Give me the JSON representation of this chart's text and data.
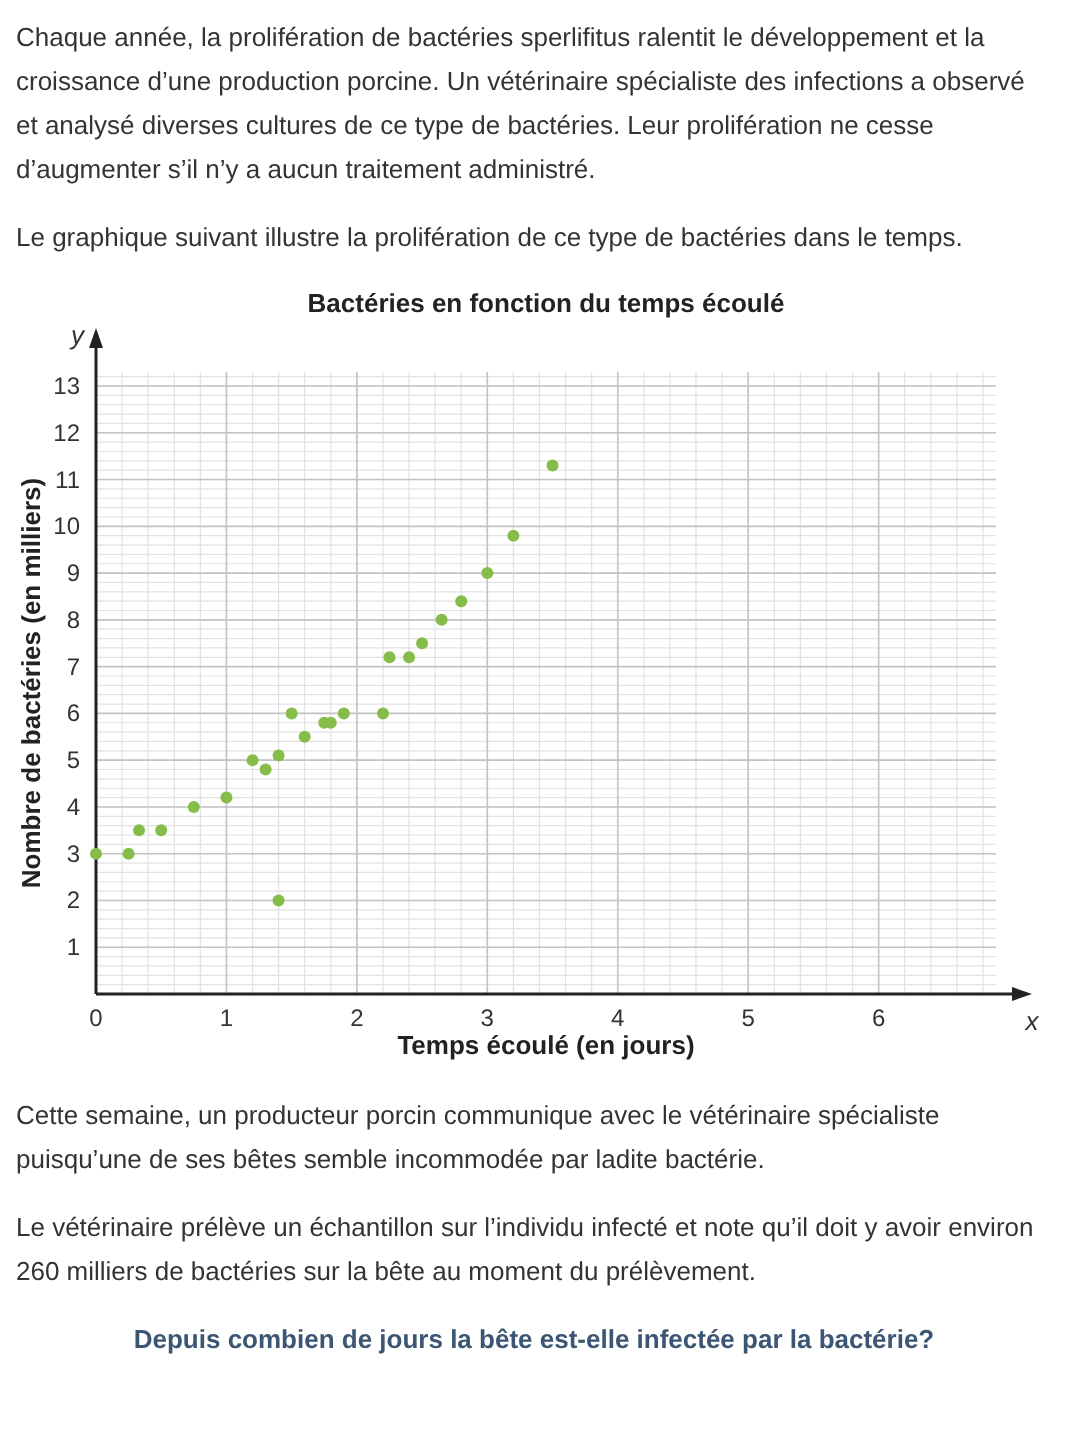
{
  "chart_data": {
    "type": "scatter",
    "title": "Bactéries en fonction du temps écoulé",
    "xlabel": "Temps écoulé (en jours)",
    "ylabel": "Nombre de bactéries (en milliers)",
    "annotations": [
      "Chaque année, la prolifération de bactéries sperlifitus ralentit le développement et la croissance d’une production porcine. Un vétérinaire spécialiste des infections a observé et analysé diverses cultures de ce type de bactéries. Leur prolifération ne cesse d’augmenter s’il n’y a aucun traitement administré.",
      "Le graphique suivant illustre la prolifération de ce type de bactéries dans le temps.",
      "y",
      "x",
      "Cette semaine, un producteur porcin communique avec le vétérinaire spécialiste puisqu’une de ses bêtes semble incommodée par ladite bactérie.",
      "Le vétérinaire prélève un échantillon sur l’individu infecté et note qu’il doit y avoir environ 260 milliers de bactéries sur la bête au moment du prélèvement.",
      "Depuis combien de jours la bête est-elle infectée par la bactérie?"
    ],
    "x": [
      0,
      0.25,
      0.33,
      0.5,
      0.75,
      1.0,
      1.2,
      1.3,
      1.4,
      1.4,
      1.5,
      1.6,
      1.75,
      1.8,
      1.9,
      2.2,
      2.25,
      2.4,
      2.5,
      2.65,
      2.8,
      3.0,
      3.2,
      3.5
    ],
    "values": [
      3,
      3,
      3.5,
      3.5,
      4,
      4.2,
      5,
      4.8,
      5.1,
      2,
      6,
      5.5,
      5.8,
      5.8,
      6,
      6,
      7.2,
      7.2,
      7.5,
      8,
      8.4,
      9,
      9.8,
      11.3
    ],
    "color": "#86bc4a",
    "marker": "circle",
    "xlim": [
      0,
      6.9
    ],
    "ylim": [
      0,
      13.3
    ],
    "xticks": [
      0,
      1,
      2,
      3,
      4,
      5,
      6
    ],
    "yticks": [
      1,
      2,
      3,
      4,
      5,
      6,
      7,
      8,
      9,
      10,
      11,
      12,
      13
    ],
    "grid": true
  }
}
